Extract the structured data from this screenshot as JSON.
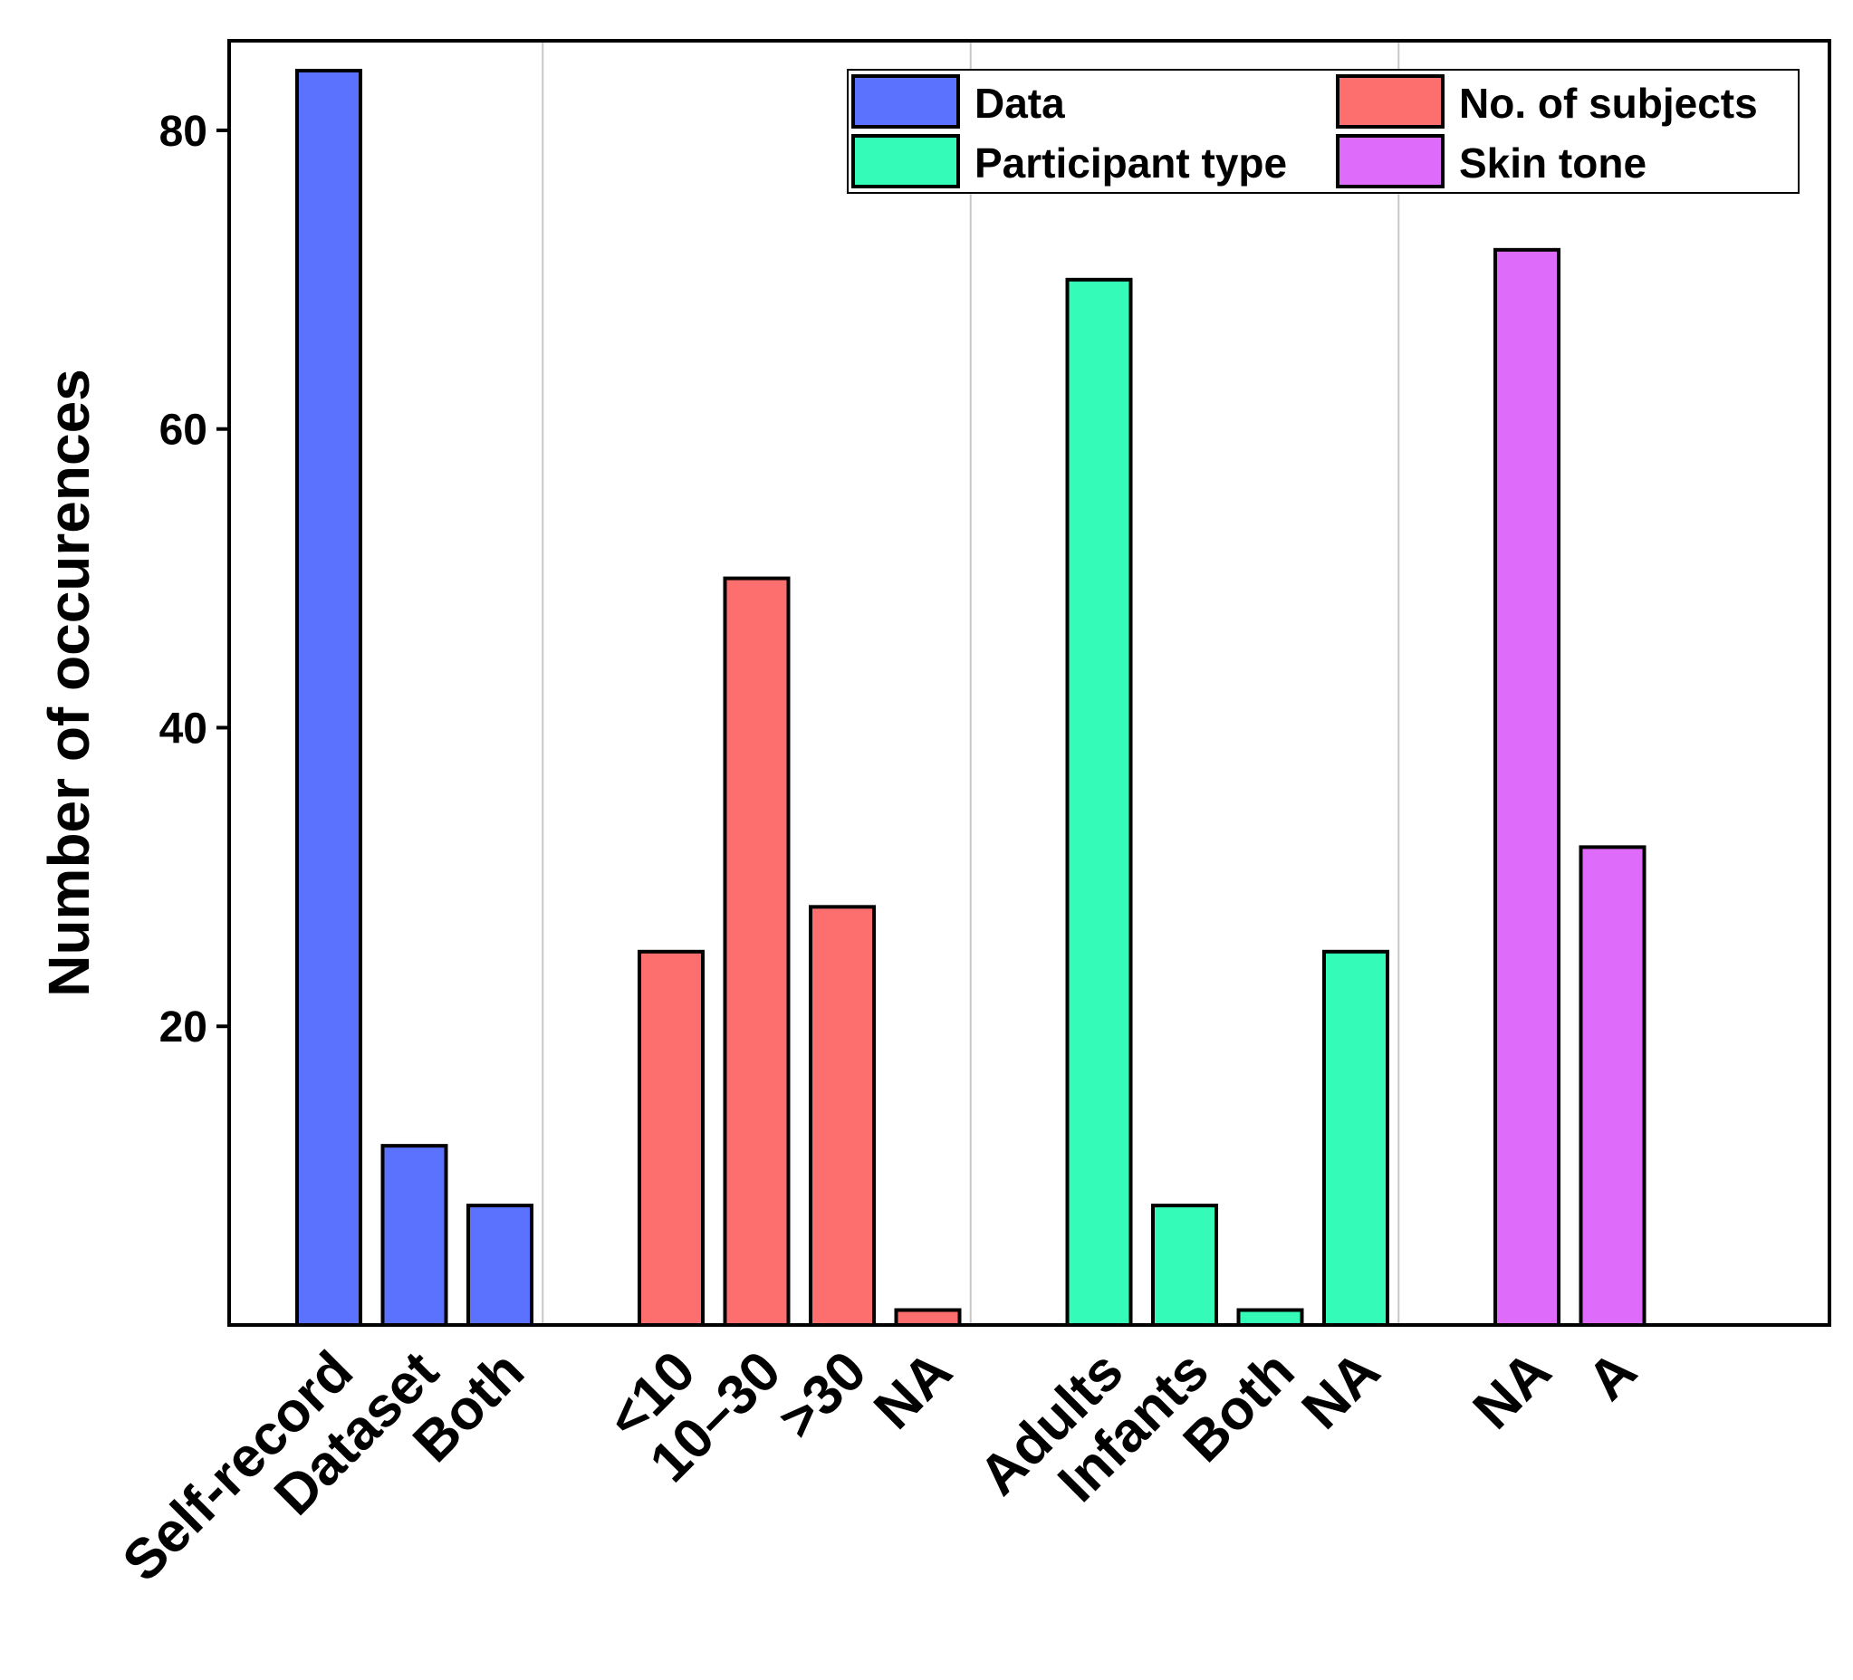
{
  "chart_data": {
    "type": "bar",
    "ylabel": "Number of occurences",
    "xlabel": "",
    "ylim": [
      0,
      86
    ],
    "yticks": [
      20,
      40,
      60,
      80
    ],
    "grid": false,
    "legend_placement": "top-right",
    "groups": [
      {
        "name": "Data",
        "color": "#5b72fe",
        "categories": [
          "Self-record",
          "Dataset",
          "Both"
        ],
        "values": [
          84,
          12,
          8
        ]
      },
      {
        "name": "No. of subjects",
        "color": "#fd6f6f",
        "categories": [
          "<10",
          "10–30",
          ">30",
          "NA"
        ],
        "values": [
          25,
          50,
          28,
          1
        ]
      },
      {
        "name": "Participant type",
        "color": "#35fbb8",
        "categories": [
          "Adults",
          "Infants",
          "Both",
          "NA"
        ],
        "values": [
          70,
          8,
          1,
          25
        ]
      },
      {
        "name": "Skin tone",
        "color": "#df6bfb",
        "categories": [
          "NA",
          "A"
        ],
        "values": [
          72,
          32
        ]
      }
    ]
  }
}
